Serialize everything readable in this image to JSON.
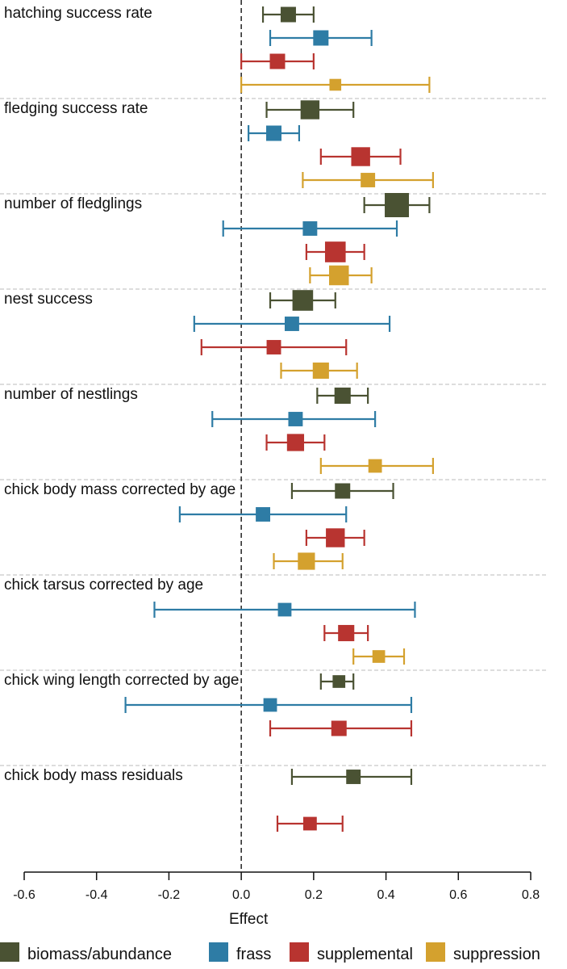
{
  "chart_data": {
    "type": "forest",
    "xlabel": "Effect",
    "xlim": [
      -0.6,
      0.8
    ],
    "xticks": [
      "-0.6",
      "-0.4",
      "-0.2",
      "0.0",
      "0.2",
      "0.4",
      "0.6",
      "0.8"
    ],
    "reference_line_x": 0,
    "legend_position": "bottom",
    "series": [
      {
        "name": "biomass/abundance",
        "color": "#4a5233"
      },
      {
        "name": "frass",
        "color": "#2e7ca5"
      },
      {
        "name": "supplemental",
        "color": "#b83430"
      },
      {
        "name": "suppression",
        "color": "#d4a12e"
      }
    ],
    "groups": [
      {
        "label": "hatching success rate",
        "estimates": [
          {
            "series": "biomass/abundance",
            "est": 0.13,
            "lo": 0.06,
            "hi": 0.2,
            "weight": 0.5
          },
          {
            "series": "frass",
            "est": 0.22,
            "lo": 0.08,
            "hi": 0.36,
            "weight": 0.5
          },
          {
            "series": "supplemental",
            "est": 0.1,
            "lo": 0.0,
            "hi": 0.2,
            "weight": 0.5
          },
          {
            "series": "suppression",
            "est": 0.26,
            "lo": 0.0,
            "hi": 0.52,
            "weight": 0.3
          }
        ]
      },
      {
        "label": "fledging success rate",
        "estimates": [
          {
            "series": "biomass/abundance",
            "est": 0.19,
            "lo": 0.07,
            "hi": 0.31,
            "weight": 0.7
          },
          {
            "series": "frass",
            "est": 0.09,
            "lo": 0.02,
            "hi": 0.16,
            "weight": 0.5
          },
          {
            "series": "supplemental",
            "est": 0.33,
            "lo": 0.22,
            "hi": 0.44,
            "weight": 0.7
          },
          {
            "series": "suppression",
            "est": 0.35,
            "lo": 0.17,
            "hi": 0.53,
            "weight": 0.45
          }
        ]
      },
      {
        "label": "number of fledglings",
        "estimates": [
          {
            "series": "biomass/abundance",
            "est": 0.43,
            "lo": 0.34,
            "hi": 0.52,
            "weight": 1.0
          },
          {
            "series": "frass",
            "est": 0.19,
            "lo": -0.05,
            "hi": 0.43,
            "weight": 0.45
          },
          {
            "series": "supplemental",
            "est": 0.26,
            "lo": 0.18,
            "hi": 0.34,
            "weight": 0.8
          },
          {
            "series": "suppression",
            "est": 0.27,
            "lo": 0.19,
            "hi": 0.36,
            "weight": 0.75
          }
        ]
      },
      {
        "label": "nest success",
        "estimates": [
          {
            "series": "biomass/abundance",
            "est": 0.17,
            "lo": 0.08,
            "hi": 0.26,
            "weight": 0.8
          },
          {
            "series": "frass",
            "est": 0.14,
            "lo": -0.13,
            "hi": 0.41,
            "weight": 0.45
          },
          {
            "series": "supplemental",
            "est": 0.09,
            "lo": -0.11,
            "hi": 0.29,
            "weight": 0.45
          },
          {
            "series": "suppression",
            "est": 0.22,
            "lo": 0.11,
            "hi": 0.32,
            "weight": 0.55
          }
        ]
      },
      {
        "label": "number of nestlings",
        "estimates": [
          {
            "series": "biomass/abundance",
            "est": 0.28,
            "lo": 0.21,
            "hi": 0.35,
            "weight": 0.55
          },
          {
            "series": "frass",
            "est": 0.15,
            "lo": -0.08,
            "hi": 0.37,
            "weight": 0.45
          },
          {
            "series": "supplemental",
            "est": 0.15,
            "lo": 0.07,
            "hi": 0.23,
            "weight": 0.6
          },
          {
            "series": "suppression",
            "est": 0.37,
            "lo": 0.22,
            "hi": 0.53,
            "weight": 0.4
          }
        ]
      },
      {
        "label": "chick body mass corrected by age",
        "estimates": [
          {
            "series": "biomass/abundance",
            "est": 0.28,
            "lo": 0.14,
            "hi": 0.42,
            "weight": 0.5
          },
          {
            "series": "frass",
            "est": 0.06,
            "lo": -0.17,
            "hi": 0.29,
            "weight": 0.45
          },
          {
            "series": "supplemental",
            "est": 0.26,
            "lo": 0.18,
            "hi": 0.34,
            "weight": 0.7
          },
          {
            "series": "suppression",
            "est": 0.18,
            "lo": 0.09,
            "hi": 0.28,
            "weight": 0.6
          }
        ]
      },
      {
        "label": "chick tarsus corrected by age",
        "estimates": [
          {
            "series": "frass",
            "est": 0.12,
            "lo": -0.24,
            "hi": 0.48,
            "weight": 0.4
          },
          {
            "series": "supplemental",
            "est": 0.29,
            "lo": 0.23,
            "hi": 0.35,
            "weight": 0.55
          },
          {
            "series": "suppression",
            "est": 0.38,
            "lo": 0.31,
            "hi": 0.45,
            "weight": 0.35
          }
        ]
      },
      {
        "label": "chick wing length corrected by age",
        "estimates": [
          {
            "series": "biomass/abundance",
            "est": 0.27,
            "lo": 0.22,
            "hi": 0.31,
            "weight": 0.35
          },
          {
            "series": "frass",
            "est": 0.08,
            "lo": -0.32,
            "hi": 0.47,
            "weight": 0.4
          },
          {
            "series": "supplemental",
            "est": 0.27,
            "lo": 0.08,
            "hi": 0.47,
            "weight": 0.5
          }
        ]
      },
      {
        "label": "chick body mass residuals",
        "estimates": [
          {
            "series": "biomass/abundance",
            "est": 0.31,
            "lo": 0.14,
            "hi": 0.47,
            "weight": 0.45
          },
          {
            "series": "supplemental",
            "est": 0.19,
            "lo": 0.1,
            "hi": 0.28,
            "weight": 0.4
          }
        ]
      }
    ]
  }
}
